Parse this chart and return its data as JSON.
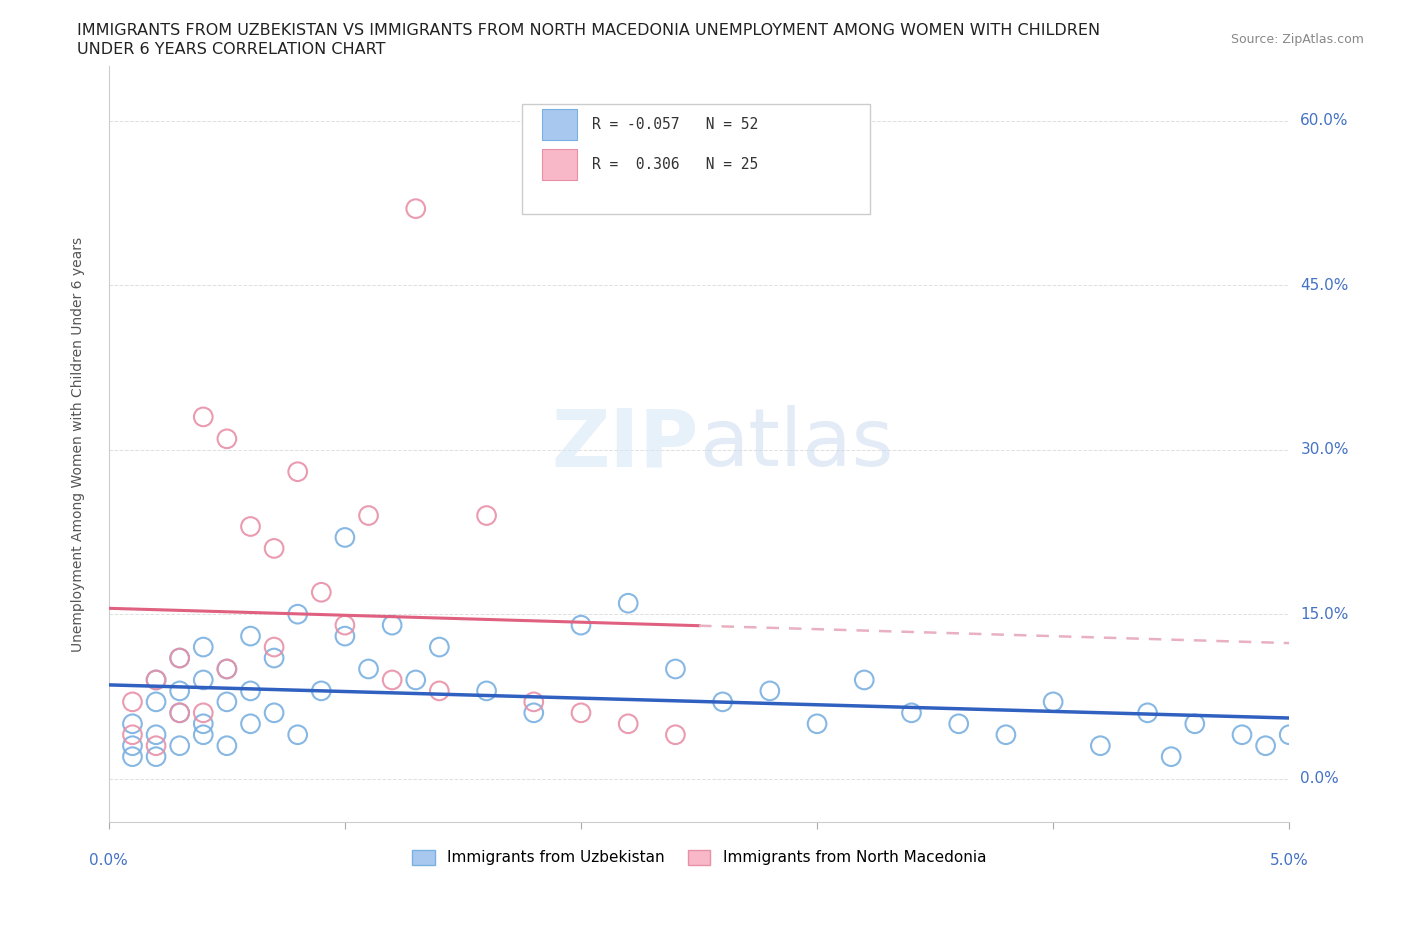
{
  "title_line1": "IMMIGRANTS FROM UZBEKISTAN VS IMMIGRANTS FROM NORTH MACEDONIA UNEMPLOYMENT AMONG WOMEN WITH CHILDREN",
  "title_line2": "UNDER 6 YEARS CORRELATION CHART",
  "source": "Source: ZipAtlas.com",
  "ylabel": "Unemployment Among Women with Children Under 6 years",
  "ytick_values": [
    0.0,
    0.15,
    0.3,
    0.45,
    0.6
  ],
  "ytick_labels": [
    "0.0%",
    "15.0%",
    "30.0%",
    "45.0%",
    "60.0%"
  ],
  "xlim": [
    0.0,
    0.05
  ],
  "ylim": [
    -0.04,
    0.65
  ],
  "color_uzbekistan": "#a8c8f0",
  "color_uzbekistan_edge": "#7ab0e0",
  "color_macedonia": "#f8b8c8",
  "color_macedonia_edge": "#e890a8",
  "color_uzbekistan_line": "#3060c0",
  "color_macedonia_line": "#e06080",
  "color_macedonia_dash": "#e8b0c0",
  "background_color": "#ffffff",
  "grid_color": "#e0e0e0",
  "title_color": "#222222",
  "right_label_color": "#4472c4",
  "source_color": "#888888",
  "legend_entry1": "R = -0.057   N = 52",
  "legend_entry2": "R =  0.306   N = 25",
  "watermark_zip_color": "#d8e8f8",
  "watermark_atlas_color": "#c8d8f0"
}
